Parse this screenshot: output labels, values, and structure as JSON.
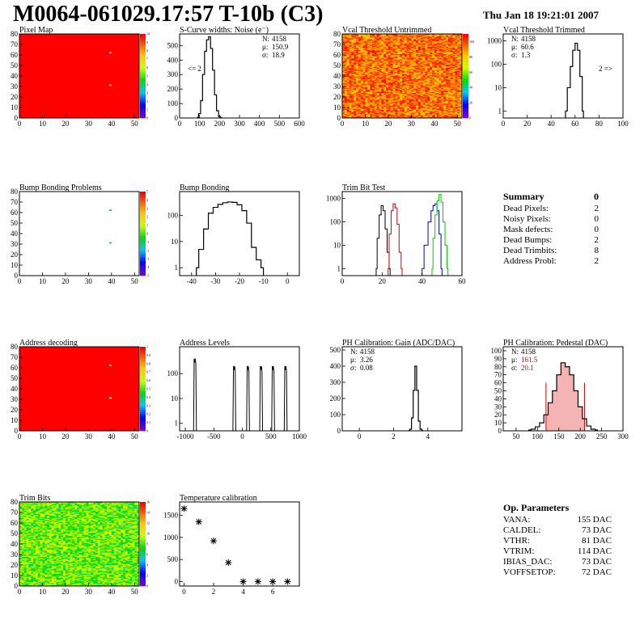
{
  "header": {
    "title": "M0064-061029.17:57 T-10b (C3)",
    "date": "Thu Jan 18 19:21:01 2007"
  },
  "colors": {
    "red": "#ff0000",
    "green": "#00cc00",
    "blue": "#0000cc",
    "darkred": "#cc0000"
  },
  "chart_data": [
    {
      "id": "pixel-map",
      "type": "heatmap",
      "title": "Pixel Map",
      "xlim": [
        0,
        52
      ],
      "ylim": [
        0,
        80
      ],
      "xticks": [
        0,
        10,
        20,
        30,
        40,
        50
      ],
      "yticks": [
        0,
        10,
        20,
        30,
        40,
        50,
        60,
        70,
        80
      ],
      "fill": "uniform-high",
      "white_pixels": [
        [
          39,
          62
        ],
        [
          39,
          31
        ]
      ],
      "zlim": [
        0,
        10
      ],
      "zticks": [
        0,
        1,
        2,
        3,
        4,
        5,
        6,
        7,
        8,
        9,
        10
      ]
    },
    {
      "id": "scurve-noise",
      "type": "line",
      "title": "S-Curve widths: Noise (e⁻)",
      "xlim": [
        0,
        600
      ],
      "ylim": [
        0,
        580
      ],
      "xticks": [
        0,
        100,
        200,
        300,
        400,
        500,
        600
      ],
      "yticks": [
        0,
        100,
        200,
        300,
        400,
        500
      ],
      "x": [
        90,
        100,
        110,
        120,
        130,
        140,
        150,
        160,
        170,
        180,
        190,
        200,
        210
      ],
      "y": [
        5,
        30,
        120,
        300,
        460,
        540,
        560,
        480,
        330,
        160,
        50,
        10,
        2
      ],
      "stats": [
        {
          "label": "N:",
          "value": "4158"
        },
        {
          "label": "μ:",
          "value": "150.9"
        },
        {
          "label": "σ:",
          "value": "18.9"
        }
      ],
      "annotation": "<= 2"
    },
    {
      "id": "vcal-untrimmed",
      "type": "heatmap",
      "title": "Vcal Threshold Untrimmed",
      "xlim": [
        0,
        52
      ],
      "ylim": [
        0,
        80
      ],
      "xticks": [
        0,
        10,
        20,
        30,
        40,
        50
      ],
      "yticks": [
        0,
        10,
        20,
        30,
        40,
        50,
        60,
        70,
        80
      ],
      "fill": "noisy-high",
      "zlim": [
        0,
        110
      ],
      "zticks": [
        0,
        20,
        40,
        60,
        80,
        100
      ]
    },
    {
      "id": "vcal-trimmed",
      "type": "line",
      "log_y": true,
      "title": "Vcal Threshold Trimmed",
      "xlim": [
        0,
        100
      ],
      "ylim": [
        0.5,
        2000
      ],
      "xticks": [
        0,
        20,
        40,
        60,
        80,
        100
      ],
      "yticks": [
        1,
        10,
        100,
        1000
      ],
      "x": [
        52,
        55,
        57,
        59,
        61,
        63,
        65,
        67
      ],
      "y": [
        1,
        10,
        80,
        400,
        800,
        400,
        30,
        1
      ],
      "stats": [
        {
          "label": "N:",
          "value": "4158"
        },
        {
          "label": "μ:",
          "value": "60.6"
        },
        {
          "label": "σ:",
          "value": "1.3"
        }
      ],
      "annotation": "2 =>"
    },
    {
      "id": "bump-problems",
      "type": "heatmap",
      "title": "Bump Bonding Problems",
      "xlim": [
        0,
        52
      ],
      "ylim": [
        0,
        80
      ],
      "xticks": [
        0,
        10,
        20,
        30,
        40,
        50
      ],
      "yticks": [
        0,
        10,
        20,
        30,
        40,
        50,
        60,
        70,
        80
      ],
      "fill": "empty",
      "green_pixels": [
        [
          39,
          62
        ],
        [
          39,
          31
        ]
      ],
      "zlim": [
        -5,
        5
      ],
      "zticks": [
        -5,
        -4,
        -3,
        -2,
        -1,
        0,
        1,
        2,
        3,
        4,
        5
      ]
    },
    {
      "id": "bump-bonding",
      "type": "line",
      "log_y": true,
      "title": "Bump Bonding",
      "xlim": [
        -45,
        5
      ],
      "ylim": [
        0.5,
        800
      ],
      "xticks": [
        -40,
        -30,
        -20,
        -10,
        0
      ],
      "yticks": [
        1,
        10,
        100
      ],
      "x": [
        -38,
        -36,
        -34,
        -32,
        -30,
        -28,
        -26,
        -24,
        -22,
        -20,
        -18,
        -16,
        -14,
        -12,
        -10
      ],
      "y": [
        1,
        5,
        30,
        120,
        200,
        260,
        300,
        320,
        310,
        250,
        150,
        50,
        6,
        2,
        1
      ]
    },
    {
      "id": "trim-bit-test",
      "type": "line",
      "log_y": true,
      "title": "Trim Bit Test",
      "xlim": [
        0,
        60
      ],
      "ylim": [
        0.5,
        2000
      ],
      "xticks": [
        0,
        20,
        40,
        60
      ],
      "yticks": [
        1,
        10,
        100,
        1000
      ],
      "series": [
        {
          "color": "#000000",
          "x": [
            17,
            18,
            19,
            20,
            21,
            22,
            23,
            24
          ],
          "y": [
            1,
            20,
            200,
            500,
            300,
            50,
            5,
            1
          ]
        },
        {
          "color": "#cc0000",
          "x": [
            23,
            24,
            25,
            26,
            27,
            28,
            29,
            30
          ],
          "y": [
            1,
            30,
            300,
            600,
            400,
            80,
            5,
            1
          ]
        },
        {
          "color": "#0000cc",
          "x": [
            40,
            42,
            44,
            45,
            46,
            47,
            48,
            49,
            50
          ],
          "y": [
            1,
            10,
            100,
            300,
            500,
            600,
            300,
            30,
            1
          ]
        },
        {
          "color": "#00cc00",
          "x": [
            45,
            46,
            47,
            48,
            49,
            50,
            51,
            52,
            53
          ],
          "y": [
            1,
            20,
            200,
            800,
            1500,
            700,
            100,
            10,
            1
          ]
        }
      ]
    },
    {
      "id": "address-decoding",
      "type": "heatmap",
      "title": "Address decoding",
      "xlim": [
        0,
        52
      ],
      "ylim": [
        0,
        80
      ],
      "xticks": [
        0,
        10,
        20,
        30,
        40,
        50
      ],
      "yticks": [
        0,
        10,
        20,
        30,
        40,
        50,
        60,
        70,
        80
      ],
      "fill": "uniform-high",
      "white_pixels": [
        [
          39,
          62
        ],
        [
          39,
          31
        ]
      ],
      "zlim": [
        0,
        1
      ],
      "zticks": [
        0,
        0.1,
        0.2,
        0.3,
        0.4,
        0.5,
        0.6,
        0.7,
        0.8,
        0.9,
        1
      ]
    },
    {
      "id": "address-levels",
      "type": "line",
      "log_y": true,
      "title": "Address Levels",
      "xlim": [
        -1100,
        1000
      ],
      "ylim": [
        0.5,
        1200
      ],
      "xticks": [
        -1000,
        -500,
        0,
        500,
        1000
      ],
      "yticks": [
        1,
        10,
        100
      ],
      "peaks": [
        -830,
        -140,
        100,
        330,
        540,
        760
      ],
      "heights": [
        400,
        200,
        200,
        200,
        200,
        200
      ]
    },
    {
      "id": "ph-gain",
      "type": "line",
      "title": "PH Calibration: Gain (ADC/DAC)",
      "xlim": [
        -1,
        6
      ],
      "ylim": [
        0,
        520
      ],
      "xticks": [
        0,
        2,
        4
      ],
      "yticks": [
        0,
        100,
        200,
        300,
        400,
        500
      ],
      "x": [
        2.9,
        3.0,
        3.1,
        3.2,
        3.3,
        3.4,
        3.5,
        3.6,
        3.7
      ],
      "y": [
        2,
        10,
        80,
        250,
        400,
        250,
        60,
        10,
        2
      ],
      "stats": [
        {
          "label": "N:",
          "value": "4158"
        },
        {
          "label": "μ:",
          "value": "3.26"
        },
        {
          "label": "σ:",
          "value": "0.08"
        }
      ]
    },
    {
      "id": "ph-pedestal",
      "type": "line",
      "title": "PH Calibration: Pedestal (DAC)",
      "xlim": [
        20,
        300
      ],
      "ylim": [
        0,
        105
      ],
      "xticks": [
        50,
        100,
        150,
        200,
        250,
        300
      ],
      "yticks": [
        0,
        10,
        20,
        30,
        40,
        50,
        60,
        70,
        80,
        90,
        100
      ],
      "x": [
        80,
        90,
        100,
        110,
        120,
        130,
        140,
        150,
        160,
        170,
        180,
        190,
        200,
        210,
        220,
        230,
        240
      ],
      "y": [
        1,
        2,
        5,
        10,
        20,
        35,
        50,
        70,
        85,
        80,
        70,
        50,
        30,
        15,
        6,
        2,
        1
      ],
      "cut_lines": [
        120,
        210
      ],
      "stats": [
        {
          "label": "N:",
          "value": "4158"
        },
        {
          "label": "μ:",
          "value": "161.5",
          "color": "#cc0000"
        },
        {
          "label": "σ:",
          "value": "20.1",
          "color": "#cc0000"
        }
      ]
    },
    {
      "id": "trim-bits",
      "type": "heatmap",
      "title": "Trim Bits",
      "xlim": [
        0,
        52
      ],
      "ylim": [
        0,
        80
      ],
      "xticks": [
        0,
        10,
        20,
        30,
        40,
        50
      ],
      "yticks": [
        0,
        10,
        20,
        30,
        40,
        50,
        60,
        70,
        80
      ],
      "fill": "noisy-mid",
      "zlim": [
        0,
        16
      ],
      "zticks": [
        0,
        2,
        4,
        6,
        8,
        10,
        12,
        14,
        16
      ]
    },
    {
      "id": "temp-cal",
      "type": "scatter",
      "title": "Temperature calibration",
      "xlim": [
        -0.3,
        7.8
      ],
      "ylim": [
        -100,
        1800
      ],
      "xticks": [
        0,
        2,
        4,
        6
      ],
      "yticks": [
        0,
        500,
        1000,
        1500
      ],
      "x": [
        0,
        1,
        2,
        3,
        4,
        5,
        6,
        7
      ],
      "y": [
        1650,
        1350,
        920,
        430,
        0,
        0,
        0,
        0
      ]
    }
  ],
  "summary": {
    "title": "Summary",
    "value": "0",
    "rows": [
      {
        "label": "Dead Pixels:",
        "value": "2"
      },
      {
        "label": "Noisy Pixels:",
        "value": "0"
      },
      {
        "label": "Mask defects:",
        "value": "0"
      },
      {
        "label": "Dead Bumps:",
        "value": "2"
      },
      {
        "label": "Dead Trimbits:",
        "value": "8"
      },
      {
        "label": "Address Probl:",
        "value": "2"
      }
    ]
  },
  "op_params": {
    "title": "Op. Parameters",
    "rows": [
      {
        "label": "VANA:",
        "value": "155 DAC"
      },
      {
        "label": "CALDEL:",
        "value": "73 DAC"
      },
      {
        "label": "VTHR:",
        "value": "81 DAC"
      },
      {
        "label": "VTRIM:",
        "value": "114 DAC"
      },
      {
        "label": "IBIAS_DAC:",
        "value": "73 DAC"
      },
      {
        "label": "VOFFSETOP:",
        "value": "72 DAC"
      }
    ]
  }
}
